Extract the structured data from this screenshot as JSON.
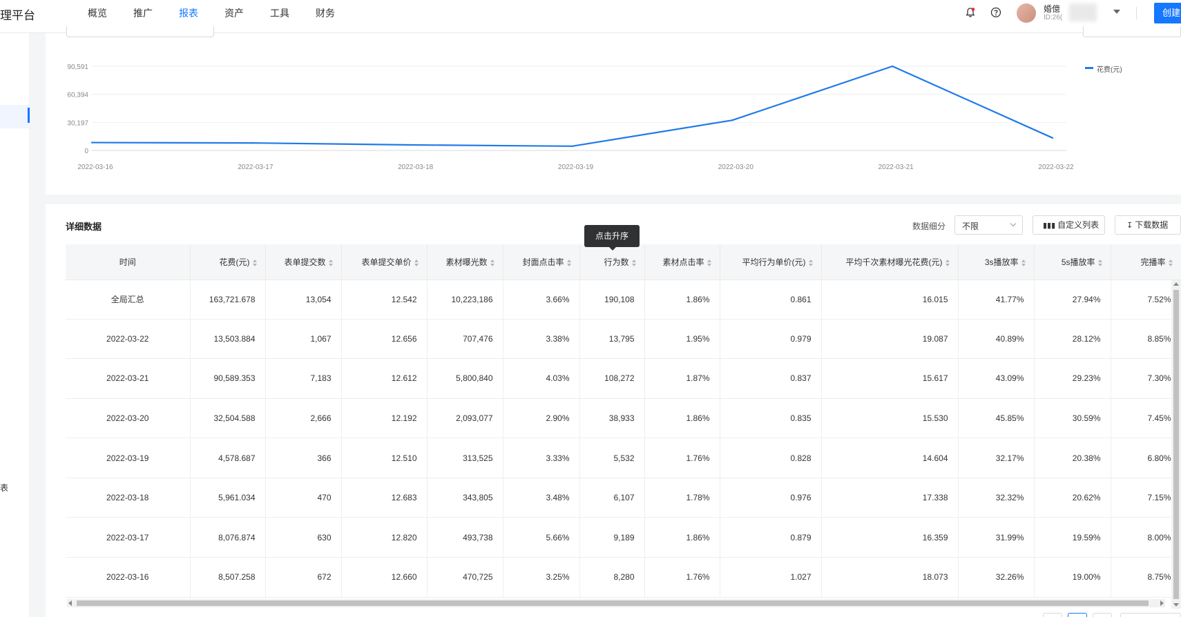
{
  "brand": "理平台",
  "nav": [
    {
      "label": "概览",
      "active": false
    },
    {
      "label": "推广",
      "active": false
    },
    {
      "label": "报表",
      "active": true
    },
    {
      "label": "资产",
      "active": false
    },
    {
      "label": "工具",
      "active": false
    },
    {
      "label": "财务",
      "active": false
    }
  ],
  "user": {
    "name": "婚億",
    "id": "ID:26("
  },
  "create_label": "创建",
  "sidebar": {
    "label": "表"
  },
  "colors": {
    "accent": "#1677ff",
    "series": "#1f7ae8"
  },
  "chart_data": {
    "type": "line",
    "x": [
      "2022-03-16",
      "2022-03-17",
      "2022-03-18",
      "2022-03-19",
      "2022-03-20",
      "2022-03-21",
      "2022-03-22"
    ],
    "series": [
      {
        "name": "花费(元)",
        "values": [
          8507.258,
          8076.874,
          5961.034,
          4578.687,
          32504.588,
          90589.353,
          13503.884
        ]
      }
    ],
    "yticks": [
      "0",
      "30,197",
      "60,394",
      "90,591"
    ],
    "ylim": [
      0,
      90591
    ],
    "grid": true,
    "legend": "top-right"
  },
  "table": {
    "title": "详细数据",
    "segment_label": "数据细分",
    "segment_value": "不限",
    "custom_columns_label": "自定义列表",
    "download_label": "下载数据",
    "tooltip": "点击升序",
    "columns": [
      "时间",
      "花费(元)",
      "表单提交数",
      "表单提交单价",
      "素材曝光数",
      "封面点击率",
      "行为数",
      "素材点击率",
      "平均行为单价(元)",
      "平均千次素材曝光花费(元)",
      "3s播放率",
      "5s播放率",
      "完播率"
    ],
    "rows": [
      [
        "全局汇总",
        "163,721.678",
        "13,054",
        "12.542",
        "10,223,186",
        "3.66%",
        "190,108",
        "1.86%",
        "0.861",
        "16.015",
        "41.77%",
        "27.94%",
        "7.52%"
      ],
      [
        "2022-03-22",
        "13,503.884",
        "1,067",
        "12.656",
        "707,476",
        "3.38%",
        "13,795",
        "1.95%",
        "0.979",
        "19.087",
        "40.89%",
        "28.12%",
        "8.85%"
      ],
      [
        "2022-03-21",
        "90,589.353",
        "7,183",
        "12.612",
        "5,800,840",
        "4.03%",
        "108,272",
        "1.87%",
        "0.837",
        "15.617",
        "43.09%",
        "29.23%",
        "7.30%"
      ],
      [
        "2022-03-20",
        "32,504.588",
        "2,666",
        "12.192",
        "2,093,077",
        "2.90%",
        "38,933",
        "1.86%",
        "0.835",
        "15.530",
        "45.85%",
        "30.59%",
        "7.45%"
      ],
      [
        "2022-03-19",
        "4,578.687",
        "366",
        "12.510",
        "313,525",
        "3.33%",
        "5,532",
        "1.76%",
        "0.828",
        "14.604",
        "32.17%",
        "20.38%",
        "6.80%"
      ],
      [
        "2022-03-18",
        "5,961.034",
        "470",
        "12.683",
        "343,805",
        "3.48%",
        "6,107",
        "1.78%",
        "0.976",
        "17.338",
        "32.32%",
        "20.62%",
        "7.15%"
      ],
      [
        "2022-03-17",
        "8,076.874",
        "630",
        "12.820",
        "493,738",
        "5.66%",
        "9,189",
        "1.86%",
        "0.879",
        "16.359",
        "31.99%",
        "19.59%",
        "8.00%"
      ],
      [
        "2022-03-16",
        "8,507.258",
        "672",
        "12.660",
        "470,725",
        "3.25%",
        "8,280",
        "1.76%",
        "1.027",
        "18.073",
        "32.26%",
        "19.00%",
        "8.75%"
      ]
    ]
  }
}
